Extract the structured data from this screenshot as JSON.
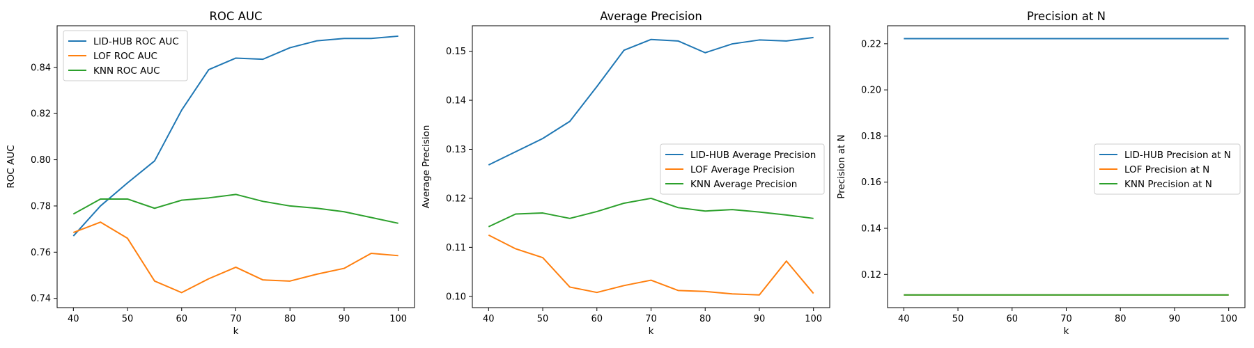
{
  "colors": {
    "lid_hub": "#1f77b4",
    "lof": "#ff7f0e",
    "knn": "#2ca02c",
    "axis": "#000000",
    "legend_border": "#cccccc"
  },
  "chart_data": [
    {
      "type": "line",
      "title": "ROC AUC",
      "xlabel": "k",
      "ylabel": "ROC AUC",
      "x": [
        40,
        45,
        50,
        55,
        60,
        65,
        70,
        75,
        80,
        85,
        90,
        95,
        100
      ],
      "xlim": [
        37,
        103
      ],
      "ylim": [
        0.736,
        0.858
      ],
      "xticks": [
        40,
        50,
        60,
        70,
        80,
        90,
        100
      ],
      "yticks": [
        0.74,
        0.76,
        0.78,
        0.8,
        0.82,
        0.84
      ],
      "ytick_labels": [
        "0.74",
        "0.76",
        "0.78",
        "0.80",
        "0.82",
        "0.84"
      ],
      "legend": "upper-left",
      "grid": false,
      "series": [
        {
          "name": "LID-HUB ROC AUC",
          "color": "#1f77b4",
          "values": [
            0.767,
            0.78,
            0.79,
            0.7995,
            0.8215,
            0.839,
            0.844,
            0.8435,
            0.8485,
            0.8515,
            0.8525,
            0.8525,
            0.8535
          ]
        },
        {
          "name": "LOF ROC AUC",
          "color": "#ff7f0e",
          "values": [
            0.7685,
            0.773,
            0.766,
            0.7475,
            0.7425,
            0.7485,
            0.7535,
            0.748,
            0.7475,
            0.7505,
            0.753,
            0.7595,
            0.7585
          ]
        },
        {
          "name": "KNN ROC AUC",
          "color": "#2ca02c",
          "values": [
            0.7765,
            0.783,
            0.783,
            0.779,
            0.7825,
            0.7835,
            0.785,
            0.782,
            0.78,
            0.779,
            0.7775,
            0.775,
            0.7725
          ]
        }
      ]
    },
    {
      "type": "line",
      "title": "Average Precision",
      "xlabel": "k",
      "ylabel": "Average Precision",
      "x": [
        40,
        45,
        50,
        55,
        60,
        65,
        70,
        75,
        80,
        85,
        90,
        95,
        100
      ],
      "xlim": [
        37,
        103
      ],
      "ylim": [
        0.0977,
        0.1552
      ],
      "xticks": [
        40,
        50,
        60,
        70,
        80,
        90,
        100
      ],
      "yticks": [
        0.1,
        0.11,
        0.12,
        0.13,
        0.14,
        0.15
      ],
      "ytick_labels": [
        "0.10",
        "0.11",
        "0.12",
        "0.13",
        "0.14",
        "0.15"
      ],
      "legend": "center-right",
      "grid": false,
      "series": [
        {
          "name": "LID-HUB Average Precision",
          "color": "#1f77b4",
          "values": [
            0.1268,
            0.1295,
            0.1322,
            0.1357,
            0.1428,
            0.1502,
            0.1524,
            0.1521,
            0.1497,
            0.1515,
            0.1523,
            0.1521,
            0.1528
          ]
        },
        {
          "name": "LOF Average Precision",
          "color": "#ff7f0e",
          "values": [
            0.1125,
            0.1097,
            0.1079,
            0.1019,
            0.1008,
            0.1022,
            0.1033,
            0.1012,
            0.101,
            0.1005,
            0.1003,
            0.1072,
            0.1006
          ]
        },
        {
          "name": "KNN Average Precision",
          "color": "#2ca02c",
          "values": [
            0.1142,
            0.1168,
            0.117,
            0.1159,
            0.1173,
            0.119,
            0.12,
            0.1181,
            0.1174,
            0.1177,
            0.1172,
            0.1166,
            0.1159
          ]
        }
      ]
    },
    {
      "type": "line",
      "title": "Precision at N",
      "xlabel": "k",
      "ylabel": "Precision at N",
      "x": [
        40,
        45,
        50,
        55,
        60,
        65,
        70,
        75,
        80,
        85,
        90,
        95,
        100
      ],
      "xlim": [
        37,
        103
      ],
      "ylim": [
        0.1056,
        0.2278
      ],
      "xticks": [
        40,
        50,
        60,
        70,
        80,
        90,
        100
      ],
      "yticks": [
        0.12,
        0.14,
        0.16,
        0.18,
        0.2,
        0.22
      ],
      "ytick_labels": [
        "0.12",
        "0.14",
        "0.16",
        "0.18",
        "0.20",
        "0.22"
      ],
      "legend": "center-right",
      "grid": false,
      "series": [
        {
          "name": "LID-HUB Precision at N",
          "color": "#1f77b4",
          "values": [
            0.2222,
            0.2222,
            0.2222,
            0.2222,
            0.2222,
            0.2222,
            0.2222,
            0.2222,
            0.2222,
            0.2222,
            0.2222,
            0.2222,
            0.2222
          ]
        },
        {
          "name": "LOF Precision at N",
          "color": "#ff7f0e",
          "values": [
            0.1111,
            0.1111,
            0.1111,
            0.1111,
            0.1111,
            0.1111,
            0.1111,
            0.1111,
            0.1111,
            0.1111,
            0.1111,
            0.1111,
            0.1111
          ]
        },
        {
          "name": "KNN Precision at N",
          "color": "#2ca02c",
          "values": [
            0.1111,
            0.1111,
            0.1111,
            0.1111,
            0.1111,
            0.1111,
            0.1111,
            0.1111,
            0.1111,
            0.1111,
            0.1111,
            0.1111,
            0.1111
          ]
        }
      ]
    }
  ]
}
